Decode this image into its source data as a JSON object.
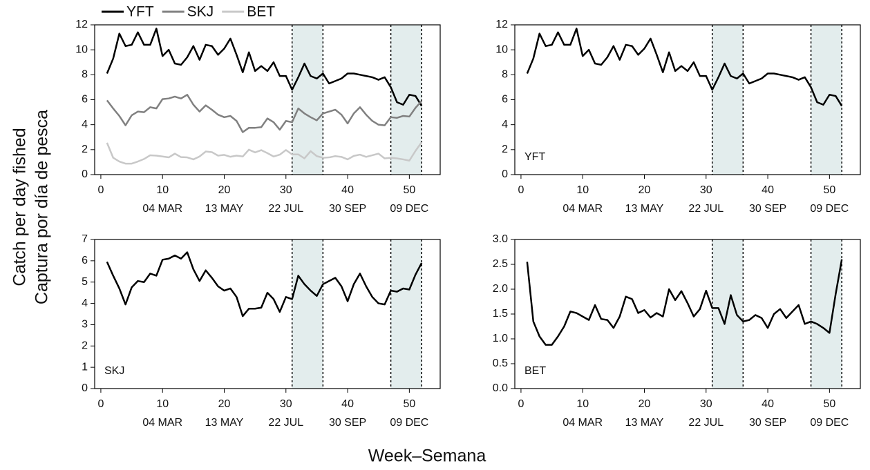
{
  "ylabel": [
    "Catch per day fished",
    "Captura por día de pesca"
  ],
  "xlabel": "Week–Semana",
  "chart_data": [
    {
      "type": "line",
      "legend": "above",
      "xlim": [
        -1,
        55
      ],
      "xticks": [
        0,
        10,
        20,
        30,
        40,
        50
      ],
      "ylim": [
        0,
        12
      ],
      "yticks": [
        0,
        2,
        4,
        6,
        8,
        10,
        12
      ],
      "date_labels": [
        {
          "value": 10,
          "label": "04 MAR"
        },
        {
          "value": 20,
          "label": "13 MAY"
        },
        {
          "value": 30,
          "label": "22 JUL"
        },
        {
          "value": 40,
          "label": "30 SEP"
        },
        {
          "value": 50,
          "label": "09 DEC"
        }
      ],
      "closures": [
        [
          31,
          36
        ],
        [
          47,
          52
        ]
      ],
      "x": [
        1,
        2,
        3,
        4,
        5,
        6,
        7,
        8,
        9,
        10,
        11,
        12,
        13,
        14,
        15,
        16,
        17,
        18,
        19,
        20,
        21,
        22,
        23,
        24,
        25,
        26,
        27,
        28,
        29,
        30,
        31,
        32,
        33,
        34,
        35,
        36,
        37,
        38,
        39,
        40,
        41,
        42,
        43,
        44,
        45,
        46,
        47,
        48,
        49,
        50,
        51,
        52
      ],
      "series": [
        {
          "name": "YFT",
          "color": "#000000",
          "values": [
            8.1,
            9.3,
            11.3,
            10.3,
            10.4,
            11.4,
            10.4,
            10.4,
            11.7,
            9.5,
            10.0,
            8.9,
            8.8,
            9.4,
            10.3,
            9.2,
            10.4,
            10.3,
            9.6,
            10.1,
            10.9,
            9.6,
            8.2,
            9.8,
            8.3,
            8.7,
            8.3,
            9.0,
            7.9,
            7.9,
            6.8,
            7.8,
            8.9,
            7.9,
            7.7,
            8.1,
            7.3,
            7.5,
            7.7,
            8.1,
            8.1,
            8.0,
            7.9,
            7.8,
            7.6,
            7.8,
            7.0,
            5.8,
            5.6,
            6.4,
            6.3,
            5.5
          ]
        },
        {
          "name": "SKJ",
          "color": "#808080",
          "values": [
            5.95,
            5.3,
            4.7,
            3.95,
            4.75,
            5.05,
            5.0,
            5.4,
            5.3,
            6.05,
            6.1,
            6.25,
            6.1,
            6.4,
            5.6,
            5.05,
            5.55,
            5.2,
            4.8,
            4.6,
            4.7,
            4.3,
            3.4,
            3.75,
            3.75,
            3.8,
            4.5,
            4.2,
            3.6,
            4.3,
            4.2,
            5.3,
            4.9,
            4.6,
            4.35,
            4.9,
            5.05,
            5.2,
            4.8,
            4.1,
            4.9,
            5.4,
            4.8,
            4.3,
            4.0,
            3.95,
            4.6,
            4.55,
            4.7,
            4.65,
            5.35,
            5.9
          ]
        },
        {
          "name": "BET",
          "color": "#c8c8c8",
          "values": [
            2.55,
            1.35,
            1.05,
            0.88,
            0.88,
            1.05,
            1.25,
            1.55,
            1.52,
            1.45,
            1.38,
            1.68,
            1.4,
            1.38,
            1.22,
            1.45,
            1.85,
            1.8,
            1.52,
            1.58,
            1.43,
            1.52,
            1.45,
            2.0,
            1.78,
            1.96,
            1.72,
            1.45,
            1.6,
            1.97,
            1.62,
            1.62,
            1.3,
            1.88,
            1.48,
            1.35,
            1.38,
            1.48,
            1.42,
            1.22,
            1.5,
            1.6,
            1.42,
            1.55,
            1.68,
            1.3,
            1.35,
            1.3,
            1.22,
            1.12,
            1.9,
            2.6
          ]
        }
      ]
    },
    {
      "type": "line",
      "label": "YFT",
      "xlim": [
        -1,
        55
      ],
      "xticks": [
        0,
        10,
        20,
        30,
        40,
        50
      ],
      "ylim": [
        0,
        12
      ],
      "yticks": [
        0,
        2,
        4,
        6,
        8,
        10,
        12
      ],
      "date_labels": [
        {
          "value": 10,
          "label": "04 MAR"
        },
        {
          "value": 20,
          "label": "13 MAY"
        },
        {
          "value": 30,
          "label": "22 JUL"
        },
        {
          "value": 40,
          "label": "30 SEP"
        },
        {
          "value": 50,
          "label": "09 DEC"
        }
      ],
      "closures": [
        [
          31,
          36
        ],
        [
          47,
          52
        ]
      ],
      "x": [
        1,
        2,
        3,
        4,
        5,
        6,
        7,
        8,
        9,
        10,
        11,
        12,
        13,
        14,
        15,
        16,
        17,
        18,
        19,
        20,
        21,
        22,
        23,
        24,
        25,
        26,
        27,
        28,
        29,
        30,
        31,
        32,
        33,
        34,
        35,
        36,
        37,
        38,
        39,
        40,
        41,
        42,
        43,
        44,
        45,
        46,
        47,
        48,
        49,
        50,
        51,
        52
      ],
      "series": [
        {
          "color": "#000000",
          "values": [
            8.1,
            9.3,
            11.3,
            10.3,
            10.4,
            11.4,
            10.4,
            10.4,
            11.7,
            9.5,
            10.0,
            8.9,
            8.8,
            9.4,
            10.3,
            9.2,
            10.4,
            10.3,
            9.6,
            10.1,
            10.9,
            9.6,
            8.2,
            9.8,
            8.3,
            8.7,
            8.3,
            9.0,
            7.9,
            7.9,
            6.8,
            7.8,
            8.9,
            7.9,
            7.7,
            8.1,
            7.3,
            7.5,
            7.7,
            8.1,
            8.1,
            8.0,
            7.9,
            7.8,
            7.6,
            7.8,
            7.0,
            5.8,
            5.6,
            6.4,
            6.3,
            5.5
          ]
        }
      ]
    },
    {
      "type": "line",
      "label": "SKJ",
      "xlim": [
        -1,
        55
      ],
      "xticks": [
        0,
        10,
        20,
        30,
        40,
        50
      ],
      "ylim": [
        0,
        7
      ],
      "yticks": [
        0,
        1,
        2,
        3,
        4,
        5,
        6,
        7
      ],
      "date_labels": [
        {
          "value": 10,
          "label": "04 MAR"
        },
        {
          "value": 20,
          "label": "13 MAY"
        },
        {
          "value": 30,
          "label": "22 JUL"
        },
        {
          "value": 40,
          "label": "30 SEP"
        },
        {
          "value": 50,
          "label": "09 DEC"
        }
      ],
      "closures": [
        [
          31,
          36
        ],
        [
          47,
          52
        ]
      ],
      "x": [
        1,
        2,
        3,
        4,
        5,
        6,
        7,
        8,
        9,
        10,
        11,
        12,
        13,
        14,
        15,
        16,
        17,
        18,
        19,
        20,
        21,
        22,
        23,
        24,
        25,
        26,
        27,
        28,
        29,
        30,
        31,
        32,
        33,
        34,
        35,
        36,
        37,
        38,
        39,
        40,
        41,
        42,
        43,
        44,
        45,
        46,
        47,
        48,
        49,
        50,
        51,
        52
      ],
      "series": [
        {
          "color": "#000000",
          "values": [
            5.95,
            5.3,
            4.7,
            3.95,
            4.75,
            5.05,
            5.0,
            5.4,
            5.3,
            6.05,
            6.1,
            6.25,
            6.1,
            6.4,
            5.6,
            5.05,
            5.55,
            5.2,
            4.8,
            4.6,
            4.7,
            4.3,
            3.4,
            3.75,
            3.75,
            3.8,
            4.5,
            4.2,
            3.6,
            4.3,
            4.2,
            5.3,
            4.9,
            4.6,
            4.35,
            4.9,
            5.05,
            5.2,
            4.8,
            4.1,
            4.9,
            5.4,
            4.8,
            4.3,
            4.0,
            3.95,
            4.6,
            4.55,
            4.7,
            4.65,
            5.35,
            5.9
          ]
        }
      ]
    },
    {
      "type": "line",
      "label": "BET",
      "xlim": [
        -1,
        55
      ],
      "xticks": [
        0,
        10,
        20,
        30,
        40,
        50
      ],
      "ylim": [
        0,
        3
      ],
      "yticks": [
        {
          "value": 0,
          "label": "0.0"
        },
        {
          "value": 0.5,
          "label": "0.5"
        },
        {
          "value": 1,
          "label": "1.0"
        },
        {
          "value": 1.5,
          "label": "1.5"
        },
        {
          "value": 2,
          "label": "2.0"
        },
        {
          "value": 2.5,
          "label": "2.5"
        },
        {
          "value": 3,
          "label": "3.0"
        }
      ],
      "date_labels": [
        {
          "value": 10,
          "label": "04 MAR"
        },
        {
          "value": 20,
          "label": "13 MAY"
        },
        {
          "value": 30,
          "label": "22 JUL"
        },
        {
          "value": 40,
          "label": "30 SEP"
        },
        {
          "value": 50,
          "label": "09 DEC"
        }
      ],
      "closures": [
        [
          31,
          36
        ],
        [
          47,
          52
        ]
      ],
      "x": [
        1,
        2,
        3,
        4,
        5,
        6,
        7,
        8,
        9,
        10,
        11,
        12,
        13,
        14,
        15,
        16,
        17,
        18,
        19,
        20,
        21,
        22,
        23,
        24,
        25,
        26,
        27,
        28,
        29,
        30,
        31,
        32,
        33,
        34,
        35,
        36,
        37,
        38,
        39,
        40,
        41,
        42,
        43,
        44,
        45,
        46,
        47,
        48,
        49,
        50,
        51,
        52
      ],
      "series": [
        {
          "color": "#000000",
          "values": [
            2.55,
            1.35,
            1.05,
            0.88,
            0.88,
            1.05,
            1.25,
            1.55,
            1.52,
            1.45,
            1.38,
            1.68,
            1.4,
            1.38,
            1.22,
            1.45,
            1.85,
            1.8,
            1.52,
            1.58,
            1.43,
            1.52,
            1.45,
            2.0,
            1.78,
            1.96,
            1.72,
            1.45,
            1.6,
            1.97,
            1.62,
            1.62,
            1.3,
            1.88,
            1.48,
            1.35,
            1.38,
            1.48,
            1.42,
            1.22,
            1.5,
            1.6,
            1.42,
            1.55,
            1.68,
            1.3,
            1.35,
            1.3,
            1.22,
            1.12,
            1.9,
            2.6
          ]
        }
      ]
    }
  ]
}
